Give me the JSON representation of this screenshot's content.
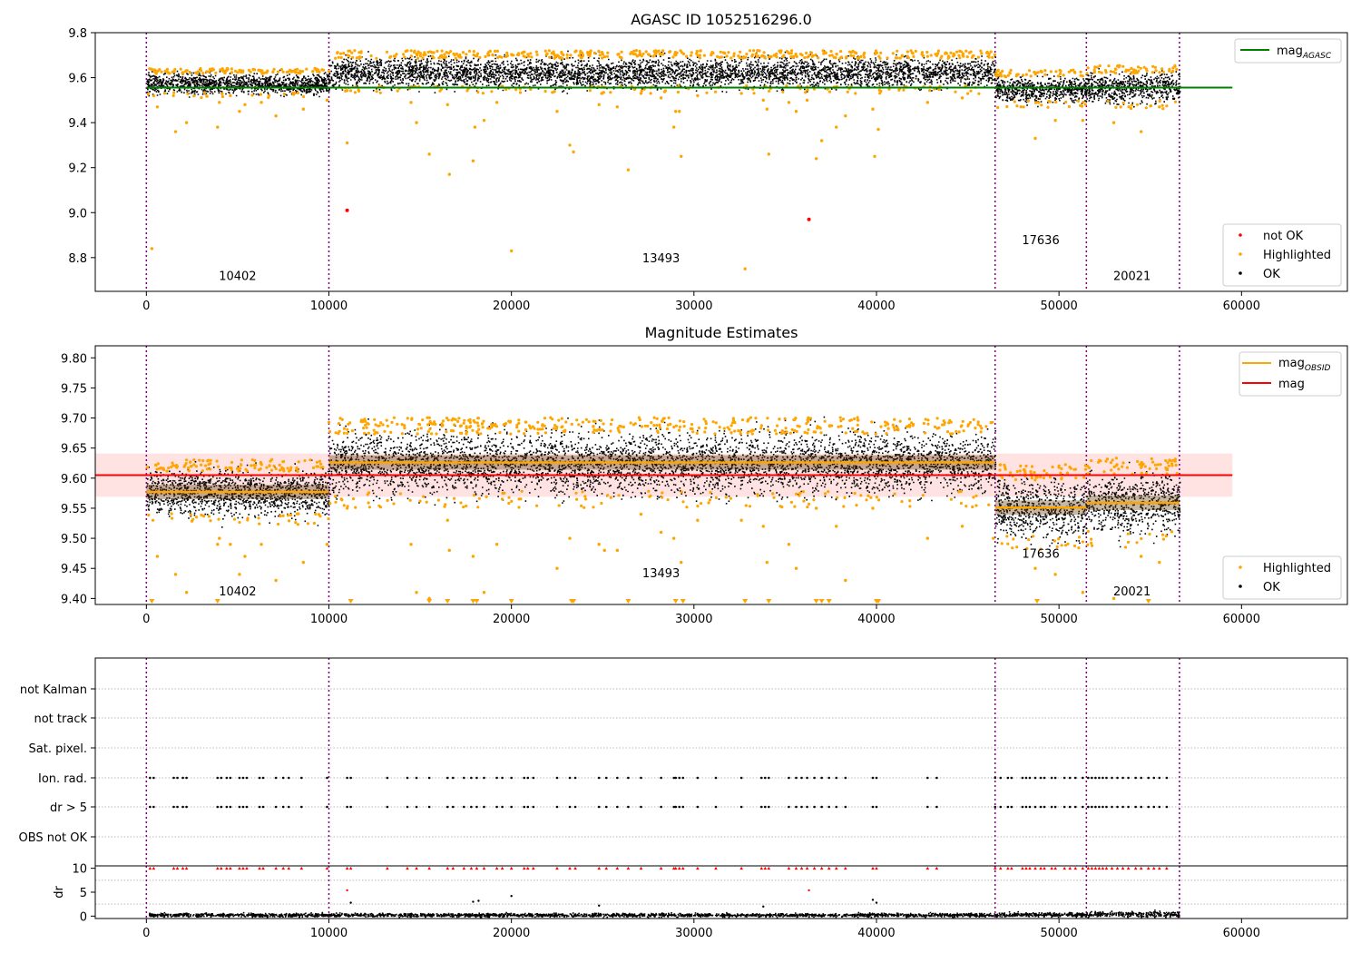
{
  "colors": {
    "ok": "#000000",
    "highlighted": "#ffa500",
    "not_ok": "#ff0000",
    "agasc_line": "#008000",
    "obsid_line": "#ffa500",
    "mag_line": "#ff0000",
    "mag_band": "#ffcccc",
    "obs_dividers": "#800080",
    "grid": "#bbbbbb"
  },
  "chart_data": [
    {
      "type": "scatter",
      "title": "AGASC ID 1052516296.0",
      "xlim": [
        -2800,
        65800
      ],
      "ylim": [
        8.65,
        9.8
      ],
      "xticks": [
        0,
        10000,
        20000,
        30000,
        40000,
        50000,
        60000
      ],
      "yticks": [
        8.8,
        9.0,
        9.2,
        9.4,
        9.6,
        9.8
      ],
      "ytick_labels": [
        "8.8",
        "9.0",
        "9.2",
        "9.4",
        "9.6",
        "9.8"
      ],
      "obs_boundaries": [
        0,
        10000,
        46500,
        51500,
        56600
      ],
      "obsids": [
        {
          "label": "10402",
          "x": 5000,
          "y": 8.7
        },
        {
          "label": "13493",
          "x": 28200,
          "y": 8.78
        },
        {
          "label": "17636",
          "x": 49000,
          "y": 8.86
        },
        {
          "label": "20021",
          "x": 54000,
          "y": 8.7
        }
      ],
      "hline": {
        "y": 9.556,
        "x": [
          0,
          59500
        ]
      },
      "segments": [
        {
          "x": [
            0,
            10000
          ],
          "center": 9.575,
          "spread": 0.022
        },
        {
          "x": [
            10000,
            46500
          ],
          "center": 9.625,
          "spread": 0.032
        },
        {
          "x": [
            46500,
            51500
          ],
          "center": 9.55,
          "spread": 0.028
        },
        {
          "x": [
            51500,
            56600
          ],
          "center": 9.558,
          "spread": 0.032
        }
      ],
      "highlighted_points": [
        [
          300,
          8.84
        ],
        [
          600,
          9.47
        ],
        [
          1600,
          9.36
        ],
        [
          2200,
          9.4
        ],
        [
          3900,
          9.38
        ],
        [
          4000,
          9.49
        ],
        [
          4600,
          9.52
        ],
        [
          5100,
          9.45
        ],
        [
          5400,
          9.48
        ],
        [
          6300,
          9.49
        ],
        [
          7100,
          9.43
        ],
        [
          8600,
          9.46
        ],
        [
          9900,
          9.5
        ],
        [
          11000,
          9.31
        ],
        [
          14500,
          9.49
        ],
        [
          14800,
          9.4
        ],
        [
          15500,
          9.26
        ],
        [
          16500,
          9.48
        ],
        [
          16600,
          9.17
        ],
        [
          17900,
          9.23
        ],
        [
          18000,
          9.38
        ],
        [
          18500,
          9.41
        ],
        [
          19200,
          9.49
        ],
        [
          20000,
          8.83
        ],
        [
          22500,
          9.45
        ],
        [
          23200,
          9.3
        ],
        [
          23400,
          9.27
        ],
        [
          24800,
          9.48
        ],
        [
          25800,
          9.47
        ],
        [
          26400,
          9.19
        ],
        [
          27100,
          9.53
        ],
        [
          28200,
          9.51
        ],
        [
          28900,
          9.38
        ],
        [
          29000,
          9.45
        ],
        [
          29200,
          9.45
        ],
        [
          29300,
          9.25
        ],
        [
          30200,
          9.52
        ],
        [
          32600,
          9.53
        ],
        [
          32800,
          8.75
        ],
        [
          33800,
          9.5
        ],
        [
          34000,
          9.46
        ],
        [
          34100,
          9.26
        ],
        [
          35200,
          9.49
        ],
        [
          35600,
          9.45
        ],
        [
          36200,
          9.5
        ],
        [
          36700,
          9.24
        ],
        [
          37000,
          9.32
        ],
        [
          37800,
          9.38
        ],
        [
          38300,
          9.43
        ],
        [
          39800,
          9.46
        ],
        [
          39900,
          9.25
        ],
        [
          40100,
          9.37
        ],
        [
          42800,
          9.49
        ],
        [
          44700,
          9.51
        ],
        [
          48700,
          9.33
        ],
        [
          49800,
          9.41
        ],
        [
          51300,
          9.41
        ],
        [
          53000,
          9.4
        ],
        [
          54500,
          9.36
        ],
        [
          55500,
          9.47
        ]
      ],
      "not_ok_points": [
        [
          11000,
          9.01
        ],
        [
          36300,
          8.97
        ]
      ],
      "legend_top": [
        "mag_AGASC"
      ],
      "legend_bottom": [
        "not OK",
        "Highlighted",
        "OK"
      ]
    },
    {
      "type": "scatter",
      "title": "Magnitude Estimates",
      "xlim": [
        -2800,
        65800
      ],
      "ylim": [
        9.39,
        9.82
      ],
      "xticks": [
        0,
        10000,
        20000,
        30000,
        40000,
        50000,
        60000
      ],
      "yticks": [
        9.4,
        9.45,
        9.5,
        9.55,
        9.6,
        9.65,
        9.7,
        9.75,
        9.8
      ],
      "ytick_labels": [
        "9.40",
        "9.45",
        "9.50",
        "9.55",
        "9.60",
        "9.65",
        "9.70",
        "9.75",
        "9.80"
      ],
      "obs_boundaries": [
        0,
        10000,
        46500,
        51500,
        56600
      ],
      "obsids": [
        {
          "label": "10402",
          "x": 5000,
          "y": 9.405
        },
        {
          "label": "13493",
          "x": 28200,
          "y": 9.435
        },
        {
          "label": "17636",
          "x": 49000,
          "y": 9.468
        },
        {
          "label": "20021",
          "x": 54000,
          "y": 9.405
        }
      ],
      "mag": 9.605,
      "mag_band": [
        9.569,
        9.641
      ],
      "mag_line_x": [
        -2800,
        59500
      ],
      "obsid_means": [
        {
          "x": [
            0,
            10000
          ],
          "y": 9.577
        },
        {
          "x": [
            10000,
            46500
          ],
          "y": 9.626
        },
        {
          "x": [
            46500,
            51500
          ],
          "y": 9.551
        },
        {
          "x": [
            51500,
            56600
          ],
          "y": 9.559
        }
      ],
      "segments": [
        {
          "x": [
            0,
            10000
          ],
          "center": 9.577,
          "spread": 0.018
        },
        {
          "x": [
            10000,
            46500
          ],
          "center": 9.626,
          "spread": 0.025
        },
        {
          "x": [
            46500,
            51500
          ],
          "center": 9.551,
          "spread": 0.024
        },
        {
          "x": [
            51500,
            56600
          ],
          "center": 9.559,
          "spread": 0.025
        }
      ],
      "highlighted_points": [
        [
          600,
          9.47
        ],
        [
          1600,
          9.44
        ],
        [
          2200,
          9.41
        ],
        [
          3900,
          9.49
        ],
        [
          4000,
          9.5
        ],
        [
          4600,
          9.49
        ],
        [
          5100,
          9.44
        ],
        [
          5400,
          9.47
        ],
        [
          6300,
          9.49
        ],
        [
          7100,
          9.43
        ],
        [
          8600,
          9.46
        ],
        [
          9900,
          9.49
        ],
        [
          11000,
          9.55
        ],
        [
          14500,
          9.49
        ],
        [
          14800,
          9.41
        ],
        [
          15500,
          9.4
        ],
        [
          16500,
          9.53
        ],
        [
          16600,
          9.48
        ],
        [
          17900,
          9.47
        ],
        [
          18500,
          9.41
        ],
        [
          19200,
          9.49
        ],
        [
          22500,
          9.45
        ],
        [
          23200,
          9.5
        ],
        [
          24800,
          9.49
        ],
        [
          25100,
          9.48
        ],
        [
          25800,
          9.48
        ],
        [
          27100,
          9.54
        ],
        [
          28200,
          9.51
        ],
        [
          28900,
          9.5
        ],
        [
          29300,
          9.46
        ],
        [
          30200,
          9.53
        ],
        [
          32600,
          9.53
        ],
        [
          33800,
          9.52
        ],
        [
          34000,
          9.46
        ],
        [
          35200,
          9.49
        ],
        [
          35600,
          9.45
        ],
        [
          36700,
          9.55
        ],
        [
          37800,
          9.52
        ],
        [
          38300,
          9.43
        ],
        [
          39800,
          9.55
        ],
        [
          42800,
          9.5
        ],
        [
          44700,
          9.52
        ],
        [
          46400,
          9.5
        ],
        [
          48700,
          9.45
        ],
        [
          49800,
          9.44
        ],
        [
          51300,
          9.41
        ],
        [
          53000,
          9.4
        ],
        [
          54500,
          9.47
        ],
        [
          55500,
          9.46
        ]
      ],
      "clipped_points": [
        300,
        3900,
        11200,
        15500,
        16500,
        17900,
        18100,
        20000,
        23300,
        23400,
        26400,
        29000,
        29400,
        32800,
        34100,
        36700,
        37000,
        37400,
        40000,
        40100,
        48800,
        54900
      ],
      "legend_top": [
        "mag_OBSID",
        "mag"
      ],
      "legend_bottom": [
        "Highlighted",
        "OK"
      ]
    },
    {
      "type": "scatter",
      "xlim": [
        -2800,
        65800
      ],
      "flag_labels": [
        "not Kalman",
        "not track",
        "Sat. pixel.",
        "Ion. rad.",
        "dr > 5",
        "OBS not OK"
      ],
      "flag_xs": [
        200,
        400,
        1500,
        1700,
        2000,
        2200,
        3900,
        4100,
        4400,
        4600,
        5100,
        5300,
        5500,
        6200,
        6400,
        7100,
        7500,
        7800,
        8500,
        9900,
        11000,
        11200,
        13200,
        14300,
        14800,
        15500,
        16500,
        16800,
        17400,
        17800,
        18100,
        18500,
        19200,
        19500,
        20000,
        20700,
        20900,
        21200,
        22500,
        23200,
        23500,
        24800,
        25200,
        25800,
        26400,
        27100,
        28200,
        28900,
        29000,
        29200,
        29400,
        30200,
        31200,
        32600,
        33700,
        33900,
        34100,
        35200,
        35600,
        35900,
        36200,
        36600,
        37000,
        37400,
        37800,
        38300,
        39800,
        40000,
        42800,
        43300,
        46500,
        46800,
        47200,
        47400,
        48000,
        48200,
        48400,
        48700,
        49000,
        49200,
        49600,
        49800,
        50300,
        50600,
        50900,
        51300,
        51600,
        51800,
        52000,
        52200,
        52400,
        52600,
        52900,
        53200,
        53500,
        53800,
        54200,
        54500,
        54900,
        55200,
        55500,
        55900
      ],
      "dr_ylim": [
        -0.5,
        10.5
      ],
      "dr_yticks": [
        0,
        5,
        10
      ],
      "dr_ylabel": "dr",
      "dr_xticks": [
        0,
        10000,
        20000,
        30000,
        40000,
        50000,
        60000
      ],
      "dr_outliers": [
        [
          11000,
          5.4
        ],
        [
          36300,
          5.4
        ],
        [
          11200,
          2.8
        ],
        [
          17900,
          3.0
        ],
        [
          18200,
          3.2
        ],
        [
          20000,
          4.2
        ],
        [
          24800,
          2.2
        ],
        [
          39800,
          3.4
        ],
        [
          40000,
          2.8
        ],
        [
          33800,
          2.0
        ]
      ],
      "obs_boundaries": [
        0,
        10000,
        46500,
        51500,
        56600
      ]
    }
  ]
}
